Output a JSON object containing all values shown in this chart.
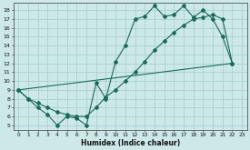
{
  "xlabel": "Humidex (Indice chaleur)",
  "bg_color": "#cce8e8",
  "grid_color": "#aad0d0",
  "line_color": "#1a6b5a",
  "xlim": [
    -0.5,
    23.5
  ],
  "ylim": [
    4.5,
    18.8
  ],
  "xticks": [
    0,
    1,
    2,
    3,
    4,
    5,
    6,
    7,
    8,
    9,
    10,
    11,
    12,
    13,
    14,
    15,
    16,
    17,
    18,
    19,
    20,
    21,
    22,
    23
  ],
  "yticks": [
    5,
    6,
    7,
    8,
    9,
    10,
    11,
    12,
    13,
    14,
    15,
    16,
    17,
    18
  ],
  "line1_x": [
    0,
    1,
    2,
    3,
    4,
    5,
    6,
    7,
    8,
    9,
    10,
    11,
    12,
    13,
    14,
    15,
    16,
    17,
    18,
    19,
    20,
    21,
    22
  ],
  "line1_y": [
    9,
    8,
    7,
    6.2,
    5,
    6,
    5.8,
    5,
    9.8,
    8,
    12.2,
    14,
    17,
    17.3,
    18.5,
    17.3,
    17.5,
    18.5,
    17.2,
    18,
    17,
    15,
    12
  ],
  "line2_x": [
    0,
    1,
    2,
    3,
    4,
    5,
    6,
    7,
    8,
    9,
    10,
    11,
    12,
    13,
    14,
    15,
    16,
    17,
    18,
    19,
    20,
    21,
    22
  ],
  "line2_y": [
    9,
    8,
    7.5,
    7,
    6.5,
    6.2,
    6,
    6,
    7,
    8.2,
    9,
    10,
    11,
    12.2,
    13.5,
    14.5,
    15.5,
    16.3,
    17,
    17.2,
    17.5,
    17,
    12
  ],
  "line3_x": [
    0,
    22
  ],
  "line3_y": [
    9,
    12
  ]
}
